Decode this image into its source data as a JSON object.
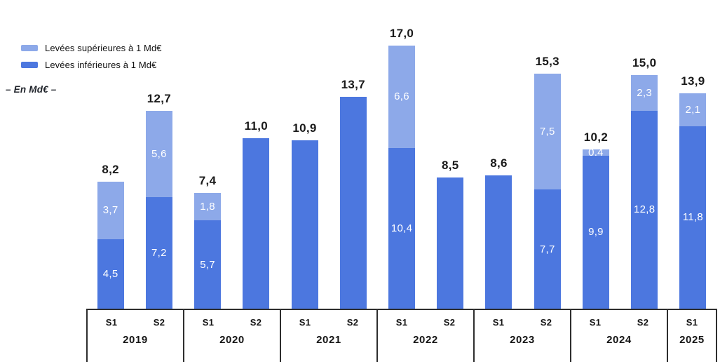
{
  "legend": [
    {
      "name": "legend-item-superieures",
      "label": "Levées supérieures à 1 Md€",
      "color": "#8DA9E9"
    },
    {
      "name": "legend-item-inferieures",
      "label": "Levées inférieures à 1 Md€",
      "color": "#4C77DF"
    }
  ],
  "unit_label": "–  En Md€  –",
  "chart_data": {
    "type": "bar",
    "stacked": true,
    "unit": "Md€",
    "ylim": [
      0,
      17
    ],
    "legend_position": "top-left",
    "grid": false,
    "series_names": [
      "Levées inférieures à 1 Md€",
      "Levées supérieures à 1 Md€"
    ],
    "colors": {
      "lower": "#4C77DF",
      "upper": "#8DA9E9"
    },
    "groups": [
      {
        "year": "2019",
        "semesters": [
          "S1",
          "S2"
        ]
      },
      {
        "year": "2020",
        "semesters": [
          "S1",
          "S2"
        ]
      },
      {
        "year": "2021",
        "semesters": [
          "S1",
          "S2"
        ]
      },
      {
        "year": "2022",
        "semesters": [
          "S1",
          "S2"
        ]
      },
      {
        "year": "2023",
        "semesters": [
          "S1",
          "S2"
        ]
      },
      {
        "year": "2024",
        "semesters": [
          "S1",
          "S2"
        ]
      },
      {
        "year": "2025",
        "semesters": [
          "S1"
        ]
      }
    ],
    "bars": [
      {
        "year": "2019",
        "semester": "S1",
        "lower": 4.5,
        "upper": 3.7,
        "lower_label": "4,5",
        "upper_label": "3,7",
        "total_label": "8,2"
      },
      {
        "year": "2019",
        "semester": "S2",
        "lower": 7.2,
        "upper": 5.6,
        "lower_label": "7,2",
        "upper_label": "5,6",
        "total_label": "12,7"
      },
      {
        "year": "2020",
        "semester": "S1",
        "lower": 5.7,
        "upper": 1.8,
        "lower_label": "5,7",
        "upper_label": "1,8",
        "total_label": "7,4"
      },
      {
        "year": "2020",
        "semester": "S2",
        "lower": 11.0,
        "upper": null,
        "lower_label": null,
        "upper_label": null,
        "total_label": "11,0"
      },
      {
        "year": "2021",
        "semester": "S1",
        "lower": 10.9,
        "upper": null,
        "lower_label": null,
        "upper_label": null,
        "total_label": "10,9"
      },
      {
        "year": "2021",
        "semester": "S2",
        "lower": 13.7,
        "upper": null,
        "lower_label": null,
        "upper_label": null,
        "total_label": "13,7"
      },
      {
        "year": "2022",
        "semester": "S1",
        "lower": 10.4,
        "upper": 6.6,
        "lower_label": "10,4",
        "upper_label": "6,6",
        "total_label": "17,0"
      },
      {
        "year": "2022",
        "semester": "S2",
        "lower": 8.5,
        "upper": null,
        "lower_label": null,
        "upper_label": null,
        "total_label": "8,5"
      },
      {
        "year": "2023",
        "semester": "S1",
        "lower": 8.6,
        "upper": null,
        "lower_label": null,
        "upper_label": null,
        "total_label": "8,6"
      },
      {
        "year": "2023",
        "semester": "S2",
        "lower": 7.7,
        "upper": 7.5,
        "lower_label": "7,7",
        "upper_label": "7,5",
        "total_label": "15,3"
      },
      {
        "year": "2024",
        "semester": "S1",
        "lower": 9.9,
        "upper": 0.4,
        "lower_label": "9,9",
        "upper_label": "0,4",
        "total_label": "10,2"
      },
      {
        "year": "2024",
        "semester": "S2",
        "lower": 12.8,
        "upper": 2.3,
        "lower_label": "12,8",
        "upper_label": "2,3",
        "total_label": "15,0"
      },
      {
        "year": "2025",
        "semester": "S1",
        "lower": 11.8,
        "upper": 2.1,
        "lower_label": "11,8",
        "upper_label": "2,1",
        "total_label": "13,9"
      }
    ]
  }
}
